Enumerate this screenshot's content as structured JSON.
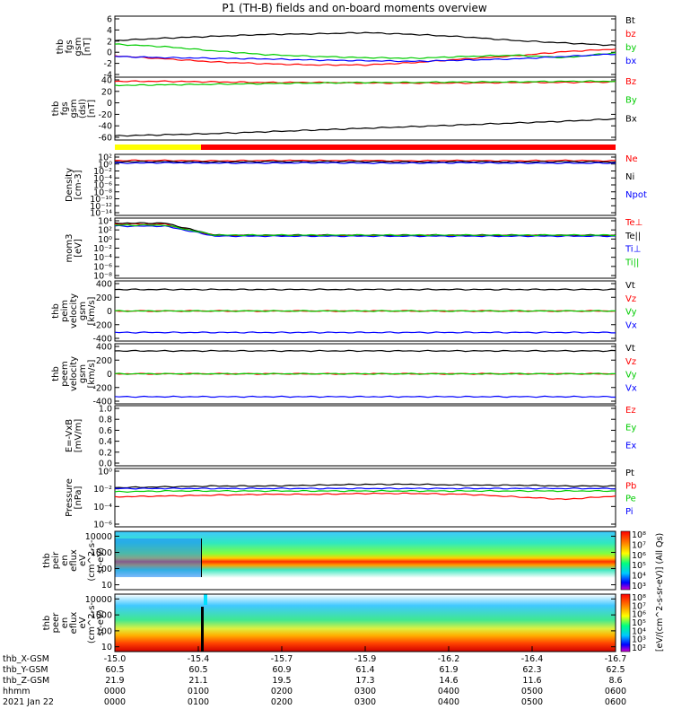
{
  "title": "P1 (TH-B) fields and on-board moments overview",
  "date_label": "2021 Jan 22",
  "time_axis": {
    "start_hour": 0,
    "end_hour": 6,
    "ticks": [
      "0000",
      "0100",
      "0200",
      "0300",
      "0400",
      "0500",
      "0600"
    ],
    "rows": [
      {
        "name": "thb_X-GSM",
        "values": [
          "-15.0",
          "-15.4",
          "-15.7",
          "-15.9",
          "-16.2",
          "-16.4",
          "-16.7"
        ]
      },
      {
        "name": "thb_Y-GSM",
        "values": [
          "60.5",
          "60.5",
          "60.9",
          "61.4",
          "61.9",
          "62.3",
          "62.5"
        ]
      },
      {
        "name": "thb_Z-GSM",
        "values": [
          "21.9",
          "21.1",
          "19.5",
          "17.3",
          "14.6",
          "11.6",
          "8.6"
        ]
      },
      {
        "name": "hhmm",
        "values": []
      }
    ]
  },
  "chart_data": [
    {
      "type": "line",
      "ylabel_lines": [
        "thb",
        "fgs",
        "gsm",
        "[nT]"
      ],
      "yticks": [
        "6",
        "4",
        "2",
        "0",
        "-2",
        "-4"
      ],
      "ylim": [
        -4,
        6
      ],
      "series": [
        {
          "name": "Bt",
          "color": "#000000",
          "values": [
            2.0,
            2.4,
            2.7,
            3.0,
            3.1,
            3.3,
            3.0,
            2.6,
            2.0,
            1.6,
            1.2
          ]
        },
        {
          "name": "bz",
          "color": "#ff0000",
          "values": [
            -0.5,
            -1.0,
            -1.5,
            -1.8,
            -2.0,
            -2.0,
            -1.6,
            -1.0,
            -0.5,
            0.2,
            0.6
          ]
        },
        {
          "name": "by",
          "color": "#00cc00",
          "values": [
            1.4,
            1.0,
            0.3,
            -0.3,
            -0.6,
            -0.8,
            -0.9,
            -0.6,
            -0.4,
            -0.8,
            0.0
          ]
        },
        {
          "name": "bx",
          "color": "#0000ff",
          "values": [
            -0.6,
            -0.8,
            -0.9,
            -1.0,
            -1.2,
            -1.3,
            -1.4,
            -1.2,
            -1.0,
            -0.6,
            -0.2
          ]
        }
      ]
    },
    {
      "type": "line",
      "ylabel_lines": [
        "thb",
        "fgs",
        "gsm",
        "(dsl)",
        "[nT]"
      ],
      "yticks": [
        "40",
        "20",
        "0",
        "-20",
        "-40",
        "-60"
      ],
      "ylim": [
        -65,
        42
      ],
      "series": [
        {
          "name": "Bz",
          "color": "#ff0000",
          "values": [
            35,
            35,
            34,
            33,
            33,
            32,
            32,
            32,
            33,
            33,
            34
          ]
        },
        {
          "name": "By",
          "color": "#00cc00",
          "values": [
            28,
            29,
            30,
            31,
            32,
            33,
            33,
            34,
            34,
            35,
            35
          ]
        },
        {
          "name": "Bx",
          "color": "#000000",
          "values": [
            -58,
            -56,
            -54,
            -51,
            -48,
            -45,
            -42,
            -39,
            -36,
            -33,
            -29
          ]
        }
      ]
    },
    {
      "type": "line",
      "ylabel_lines": [
        "Density",
        "[cm-3]"
      ],
      "yticks": [
        "10²",
        "10⁰",
        "10⁻²",
        "10⁻⁴",
        "10⁻⁶",
        "10⁻⁸",
        "10⁻¹⁰",
        "10⁻¹²",
        "10⁻¹⁴"
      ],
      "ylim": [
        -14,
        2
      ],
      "log": true,
      "series": [
        {
          "name": "Ne",
          "color": "#ff0000",
          "values": [
            0.4,
            0.4,
            0.3,
            0.4,
            0.4,
            0.4,
            0.3,
            0.4,
            0.3,
            0.4,
            0.3
          ]
        },
        {
          "name": "Ni",
          "color": "#000000",
          "values": [
            0.1,
            0.1,
            0.0,
            0.1,
            0.1,
            0.1,
            0.0,
            0.1,
            0.0,
            0.1,
            0.0
          ]
        },
        {
          "name": "Npot",
          "color": "#0000ff",
          "values": [
            -0.3,
            -0.2,
            -0.3,
            -0.3,
            -0.2,
            -0.3,
            -0.3,
            -0.2,
            -0.3,
            -0.3,
            -0.3
          ]
        }
      ]
    },
    {
      "type": "line",
      "ylabel_lines": [
        "mom3",
        "[eV]"
      ],
      "yticks": [
        "10⁴",
        "10²",
        "10⁰",
        "10⁻²",
        "10⁻⁴",
        "10⁻⁶",
        "10⁻⁸"
      ],
      "ylim": [
        -8,
        4
      ],
      "log": true,
      "series": [
        {
          "name": "Te⊥",
          "color": "#ff0000",
          "values": [
            2.8,
            2.8,
            0.5,
            0.5,
            0.5,
            0.5,
            0.5,
            0.5,
            0.5,
            0.5,
            0.5
          ]
        },
        {
          "name": "Te||",
          "color": "#000000",
          "values": [
            3.0,
            3.0,
            0.6,
            0.6,
            0.6,
            0.6,
            0.6,
            0.6,
            0.6,
            0.6,
            0.6
          ]
        },
        {
          "name": "Ti⊥",
          "color": "#0000ff",
          "values": [
            2.4,
            2.4,
            0.4,
            0.4,
            0.4,
            0.4,
            0.4,
            0.4,
            0.4,
            0.4,
            0.4
          ]
        },
        {
          "name": "Ti||",
          "color": "#00cc00",
          "values": [
            2.6,
            2.6,
            0.6,
            0.6,
            0.6,
            0.6,
            0.6,
            0.6,
            0.6,
            0.6,
            0.6
          ]
        }
      ]
    },
    {
      "type": "line",
      "ylabel_lines": [
        "thb",
        "peim",
        "velocity",
        "gsm",
        "[km/s]"
      ],
      "yticks": [
        "400",
        "200",
        "0",
        "-200",
        "-400"
      ],
      "ylim": [
        -420,
        420
      ],
      "series": [
        {
          "name": "Vt",
          "color": "#000000",
          "values": [
            300,
            300,
            300,
            300,
            300,
            300,
            300,
            300,
            300,
            300,
            300
          ]
        },
        {
          "name": "Vz",
          "color": "#ff0000",
          "values": [
            0,
            0,
            0,
            0,
            0,
            0,
            0,
            0,
            0,
            0,
            0
          ]
        },
        {
          "name": "Vy",
          "color": "#00cc00",
          "values": [
            0,
            0,
            0,
            0,
            0,
            0,
            0,
            0,
            0,
            0,
            0
          ]
        },
        {
          "name": "Vx",
          "color": "#0000ff",
          "values": [
            -300,
            -300,
            -300,
            -300,
            -300,
            -300,
            -300,
            -300,
            -300,
            -300,
            -300
          ]
        }
      ]
    },
    {
      "type": "line",
      "ylabel_lines": [
        "thb",
        "peem",
        "velocity",
        "gsm",
        "[km/s]"
      ],
      "yticks": [
        "400",
        "200",
        "0",
        "-200",
        "-400"
      ],
      "ylim": [
        -420,
        420
      ],
      "series": [
        {
          "name": "Vt",
          "color": "#000000",
          "values": [
            320,
            320,
            320,
            320,
            320,
            320,
            320,
            320,
            320,
            320,
            320
          ]
        },
        {
          "name": "Vz",
          "color": "#ff0000",
          "values": [
            0,
            0,
            0,
            0,
            0,
            0,
            0,
            0,
            0,
            0,
            0
          ]
        },
        {
          "name": "Vy",
          "color": "#00cc00",
          "values": [
            0,
            0,
            0,
            0,
            0,
            0,
            0,
            0,
            0,
            0,
            0
          ]
        },
        {
          "name": "Vx",
          "color": "#0000ff",
          "values": [
            -320,
            -320,
            -320,
            -320,
            -320,
            -320,
            -320,
            -320,
            -320,
            -320,
            -320
          ]
        }
      ]
    },
    {
      "type": "line",
      "ylabel_lines": [
        "E=-VxB",
        "[mV/m]"
      ],
      "yticks": [
        "1.0",
        "0.8",
        "0.6",
        "0.4",
        "0.2",
        "0.0"
      ],
      "ylim": [
        0,
        1.1
      ],
      "series": [
        {
          "name": "Ez",
          "color": "#ff0000",
          "values": []
        },
        {
          "name": "Ey",
          "color": "#00cc00",
          "values": []
        },
        {
          "name": "Ex",
          "color": "#0000ff",
          "values": []
        }
      ]
    },
    {
      "type": "line",
      "ylabel_lines": [
        "Pressure",
        "[nPa]"
      ],
      "yticks": [
        "10⁰",
        "10⁻²",
        "10⁻⁴",
        "10⁻⁶"
      ],
      "ylim": [
        -6.5,
        0.5
      ],
      "log": true,
      "series": [
        {
          "name": "Pt",
          "color": "#000000",
          "values": [
            -1.8,
            -1.7,
            -1.6,
            -1.6,
            -1.5,
            -1.4,
            -1.4,
            -1.5,
            -1.5,
            -1.6,
            -1.6
          ]
        },
        {
          "name": "Pb",
          "color": "#ff0000",
          "values": [
            -2.9,
            -2.8,
            -2.7,
            -2.6,
            -2.6,
            -2.5,
            -2.5,
            -2.6,
            -2.9,
            -3.2,
            -2.8
          ]
        },
        {
          "name": "Pe",
          "color": "#00cc00",
          "values": [
            -2.3,
            -2.2,
            -2.2,
            -2.2,
            -2.2,
            -2.2,
            -2.2,
            -2.2,
            -2.2,
            -2.2,
            -2.2
          ]
        },
        {
          "name": "Pi",
          "color": "#0000ff",
          "values": [
            -1.9,
            -1.9,
            -1.9,
            -1.9,
            -1.9,
            -1.9,
            -1.9,
            -1.9,
            -1.9,
            -1.9,
            -1.9
          ]
        }
      ]
    },
    {
      "type": "heatmap",
      "ylabel_lines": [
        "thb",
        "peir",
        "en",
        "eflux",
        "eV",
        "(cm^2-s-",
        "sr-eV)"
      ],
      "yticks": [
        "10000",
        "1000",
        "100",
        "10"
      ],
      "ylim": [
        5,
        20000
      ],
      "log": true,
      "colorbar_label": "[eV/(cm^2-s-sr-eV)] (All Qs)",
      "colorbar_ticks": [
        "10⁸",
        "10⁷",
        "10⁶",
        "10⁵",
        "10⁴",
        "10³"
      ]
    },
    {
      "type": "heatmap",
      "ylabel_lines": [
        "thb",
        "peer",
        "en",
        "eflux",
        "eV",
        "(cm^2-s-",
        "sr-eV)"
      ],
      "yticks": [
        "10000",
        "1000",
        "100",
        "10"
      ],
      "ylim": [
        5,
        20000
      ],
      "log": true,
      "colorbar_label": "[eV/(cm^2-s-sr-eV)]",
      "colorbar_ticks": [
        "10⁸",
        "10⁷",
        "10⁶",
        "10⁵",
        "10⁴",
        "10³",
        "10²"
      ]
    }
  ]
}
